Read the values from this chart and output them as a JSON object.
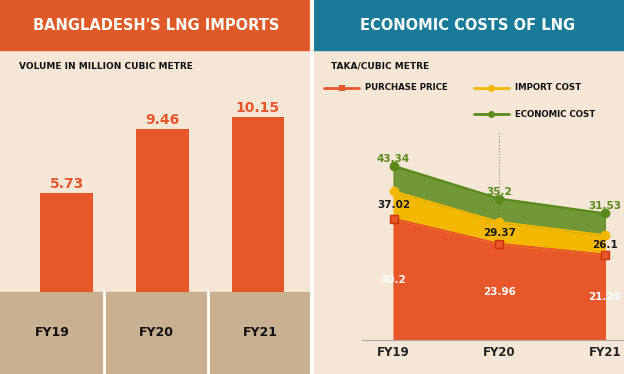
{
  "left_title": "BANGLADESH'S LNG IMPORTS",
  "left_title_bg": "#E05A28",
  "left_subtitle": "VOLUME IN MILLION CUBIC METRE",
  "left_bg": "#F5E6D5",
  "bar_categories": [
    "FY19",
    "FY20",
    "FY21"
  ],
  "bar_values": [
    5.73,
    9.46,
    10.15
  ],
  "bar_color": "#E8572A",
  "right_title": "ECONOMIC COSTS OF LNG",
  "right_title_bg": "#1A7A9A",
  "right_subtitle": "TAKA/CUBIC METRE",
  "right_bg": "#F5E6D5",
  "right_categories": [
    "FY19",
    "FY20",
    "FY21"
  ],
  "purchase_price": [
    30.2,
    23.96,
    21.29
  ],
  "import_cost": [
    37.02,
    29.37,
    26.1
  ],
  "economic_cost": [
    43.34,
    35.2,
    31.53
  ],
  "purchase_color": "#E8572A",
  "import_color": "#F5B800",
  "economic_color": "#5A8A1A",
  "legend_purchase": "PURCHASE PRICE",
  "legend_import": "IMPORT COST",
  "legend_economic": "ECONOMIC COST",
  "bottom_bar_bg": "#C8B090",
  "divider_color": "white"
}
